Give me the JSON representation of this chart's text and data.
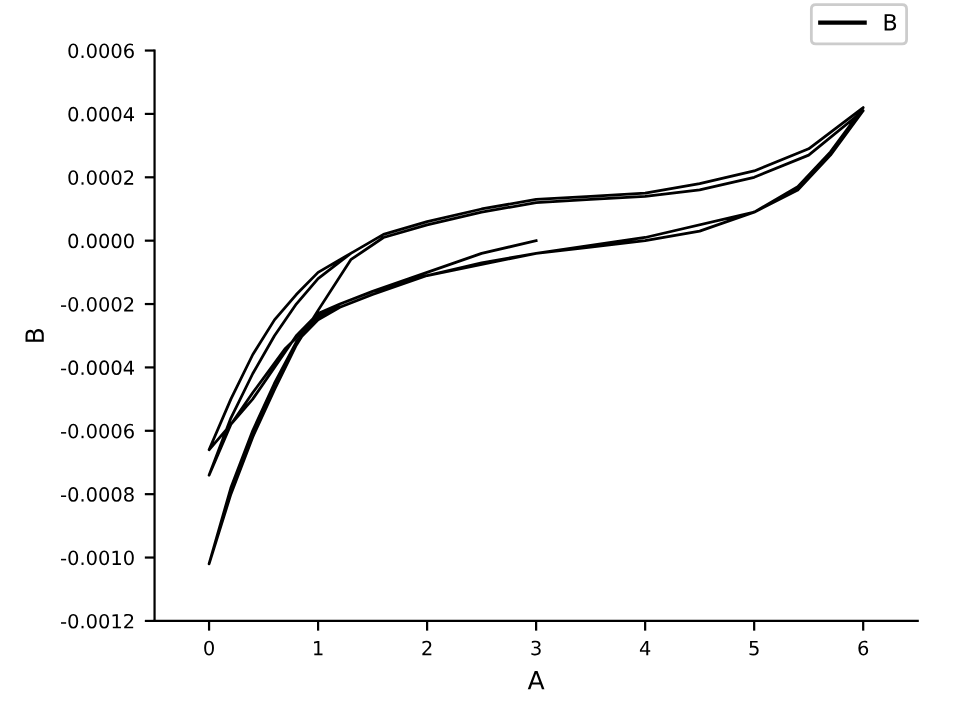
{
  "chart_data": {
    "type": "line",
    "xlabel": "A",
    "ylabel": "B",
    "xlim": [
      -0.5,
      6.5
    ],
    "ylim": [
      -0.0012,
      0.0006
    ],
    "xticks": [
      0,
      1,
      2,
      3,
      4,
      5,
      6
    ],
    "yticks": [
      {
        "value": -0.0012,
        "label": "-0.0012"
      },
      {
        "value": -0.001,
        "label": "-0.0010"
      },
      {
        "value": -0.0008,
        "label": "-0.0008"
      },
      {
        "value": -0.0006,
        "label": "-0.0006"
      },
      {
        "value": -0.0004,
        "label": "-0.0004"
      },
      {
        "value": -0.0002,
        "label": "-0.0002"
      },
      {
        "value": 0,
        "label": "0.0000"
      },
      {
        "value": 0.0002,
        "label": "0.0002"
      },
      {
        "value": 0.0004,
        "label": "0.0004"
      },
      {
        "value": 0.0006,
        "label": "0.0006"
      }
    ],
    "grid": false,
    "legend": "top right",
    "marker": "none",
    "line_style": "solid",
    "series": [
      {
        "name": "B",
        "color": "#000000",
        "x": [
          3,
          2.5,
          2,
          1.5,
          1.2,
          1,
          0.7,
          0.4,
          0.2,
          0,
          0.2,
          0.4,
          0.6,
          0.8,
          1,
          1.3,
          1.6,
          2,
          2.5,
          3,
          3.5,
          4,
          4.5,
          5,
          5.5,
          6,
          5.7,
          5.4,
          5,
          4.5,
          4,
          3.5,
          3,
          2.5,
          2,
          1.5,
          1.2,
          1,
          0.8,
          0.6,
          0.4,
          0.2,
          0,
          0.2,
          0.4,
          0.6,
          0.8,
          1,
          1.3,
          1.6,
          2,
          2.5,
          3,
          3.5,
          4,
          4.5,
          5,
          5.5,
          6,
          5.7,
          5.4,
          5,
          4,
          3,
          2,
          1.5,
          1.2,
          1,
          0.8,
          0.6,
          0.4,
          0.2,
          0,
          0.2,
          0.4,
          0.6,
          0.8,
          1,
          1.3
        ],
        "values": [
          0,
          -4e-05,
          -0.0001,
          -0.00016,
          -0.0002,
          -0.00024,
          -0.00034,
          -0.00048,
          -0.00058,
          -0.00074,
          -0.00056,
          -0.00042,
          -0.0003,
          -0.0002,
          -0.00012,
          -4e-05,
          2e-05,
          6e-05,
          0.0001,
          0.00013,
          0.00014,
          0.00015,
          0.00018,
          0.00022,
          0.00029,
          0.00042,
          0.00028,
          0.00017,
          9e-05,
          3e-05,
          0,
          -2e-05,
          -4e-05,
          -7e-05,
          -0.00011,
          -0.00017,
          -0.00021,
          -0.00025,
          -0.00032,
          -0.00045,
          -0.0006,
          -0.00078,
          -0.00102,
          -0.0008,
          -0.00062,
          -0.00047,
          -0.00033,
          -0.00022,
          -6e-05,
          1e-05,
          5e-05,
          9e-05,
          0.00012,
          0.00013,
          0.00014,
          0.00016,
          0.0002,
          0.00027,
          0.00041,
          0.00027,
          0.00016,
          9e-05,
          1e-05,
          -4e-05,
          -0.00011,
          -0.00016,
          -0.0002,
          -0.00023,
          -0.0003,
          -0.0004,
          -0.0005,
          -0.00058,
          -0.00066,
          -0.0005,
          -0.00036,
          -0.00025,
          -0.00017,
          -0.0001,
          -4e-05
        ]
      }
    ]
  }
}
